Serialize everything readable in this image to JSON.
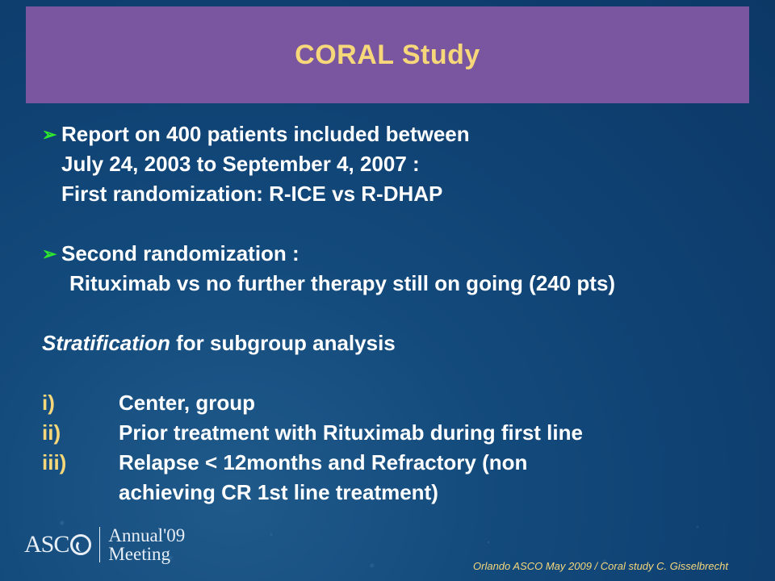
{
  "slide": {
    "title": "CORAL Study",
    "bullets": [
      {
        "lines": [
          "Report on 400 patients included between",
          "July  24, 2003 to September 4, 2007 :",
          "First randomization: R-ICE vs R-DHAP"
        ]
      },
      {
        "lines": [
          "Second randomization :",
          "Rituximab vs no further therapy still on going (240 pts)"
        ]
      }
    ],
    "stratification": {
      "italic": "Stratification",
      "rest": " for subgroup analysis"
    },
    "items": [
      {
        "num": "i)",
        "text": "Center, group"
      },
      {
        "num": "ii)",
        "text": "Prior treatment with Rituximab during first line"
      },
      {
        "num": "iii)",
        "text": "Relapse < 12months and Refractory (non",
        "cont": "achieving CR 1st line treatment)"
      }
    ]
  },
  "logo": {
    "brand": "ASC",
    "event_line1": "Annual'09",
    "event_line2": "Meeting"
  },
  "footer": "Orlando ASCO May 2009 / Coral study  C. Gisselbrecht",
  "colors": {
    "background": "#134a7c",
    "title_bar": "#7a55a0",
    "title_text": "#f6d77a",
    "bullet_arrow": "#2ee82e"
  }
}
